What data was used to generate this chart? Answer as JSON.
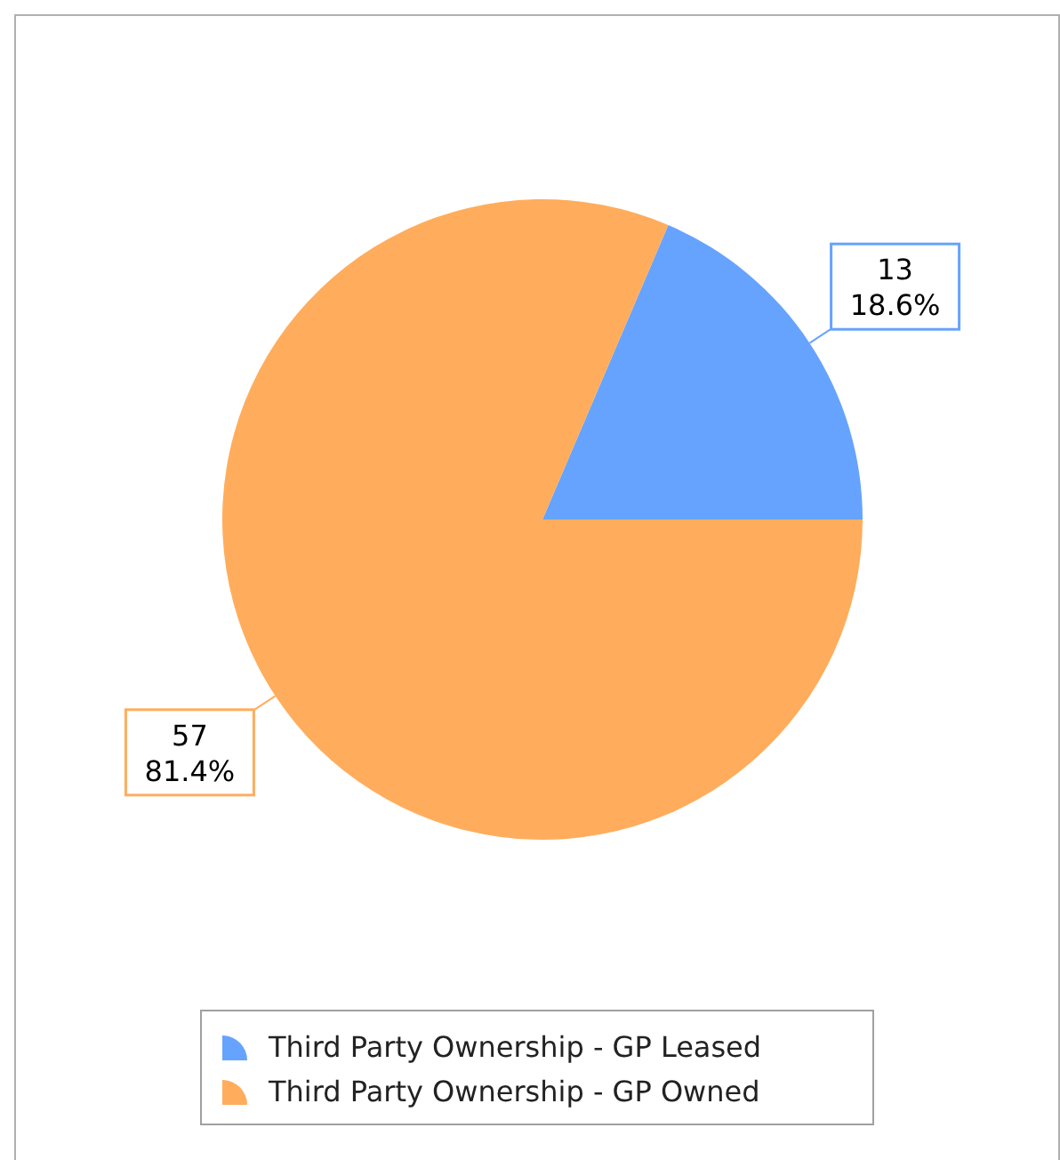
{
  "chart_data": {
    "type": "pie",
    "categories": [
      "Third Party Ownership - GP Leased",
      "Third Party Ownership - GP Owned"
    ],
    "values": [
      13,
      57
    ],
    "colors": [
      "#66a3ff",
      "#ffad5c"
    ],
    "value_labels": [
      "13\n18.6%",
      "57\n81.4%"
    ],
    "legend": "bottom"
  }
}
